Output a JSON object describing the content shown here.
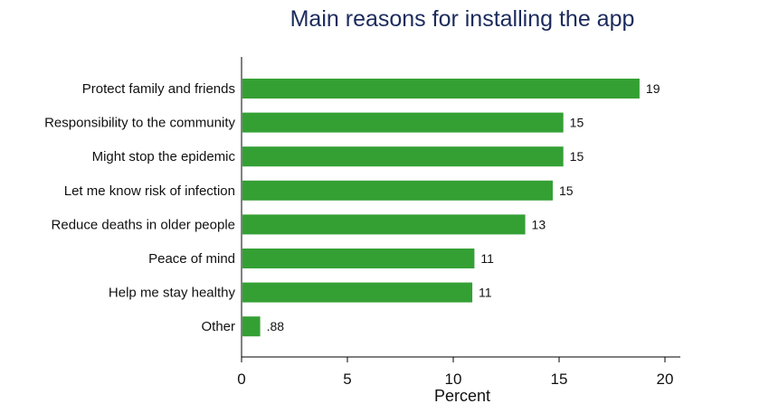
{
  "chart_data": {
    "type": "bar",
    "orientation": "horizontal",
    "title": "Main reasons for installing the app",
    "xlabel": "Percent",
    "ylabel": "",
    "categories": [
      "Protect family and friends",
      "Responsibility to the community",
      "Might stop the epidemic",
      "Let me know risk of infection",
      "Reduce deaths in older people",
      "Peace of mind",
      "Help me stay healthy",
      "Other"
    ],
    "values": [
      18.8,
      15.2,
      15.2,
      14.7,
      13.4,
      11.0,
      10.9,
      0.88
    ],
    "value_labels": [
      "19",
      "15",
      "15",
      "15",
      "13",
      "11",
      "11",
      ".88"
    ],
    "xlim": [
      0,
      20
    ],
    "xticks": [
      "0",
      "5",
      "10",
      "15",
      "20"
    ],
    "grid": false,
    "legend": "none",
    "colors": {
      "bar": "#34a034",
      "title": "#1c2b5c",
      "text": "#111111",
      "axis": "#000000"
    }
  }
}
